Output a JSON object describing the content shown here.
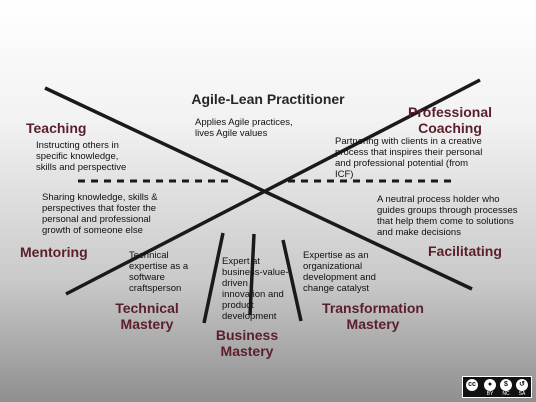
{
  "roles": {
    "practitioner": {
      "title": "Agile-Lean Practitioner",
      "desc": "Applies Agile practices,\nlives Agile values"
    },
    "teaching": {
      "title": "Teaching",
      "desc": "Instructing others in\nspecific knowledge,\nskills and perspective"
    },
    "coaching": {
      "title": "Professional\nCoaching",
      "desc": "Partnering with clients in a creative\nprocess that inspires their personal\nand professional potential (from\nICF)"
    },
    "mentoring": {
      "title": "Mentoring",
      "desc": "Sharing knowledge, skills &\nperspectives that foster the\npersonal and professional\ngrowth of someone else"
    },
    "facilitating": {
      "title": "Facilitating",
      "desc": "A neutral process holder who\nguides groups through processes\nthat help them come to solutions\nand make decisions"
    },
    "technical": {
      "title": "Technical\nMastery",
      "desc": "Technical\nexpertise as a\nsoftware\ncraftsperson"
    },
    "business": {
      "title": "Business\nMastery",
      "desc": "Expert at\nbusiness-value-\ndriven\ninnovation and\nproduct\ndevelopment"
    },
    "transformation": {
      "title": "Transformation\nMastery",
      "desc": "Expertise as an\norganizational\ndevelopment and\nchange catalyst"
    }
  },
  "license": {
    "cc": "cc",
    "by": "BY",
    "nc": "NC",
    "sa": "SA",
    "icon": "creative-commons-by-nc-sa-icon"
  }
}
